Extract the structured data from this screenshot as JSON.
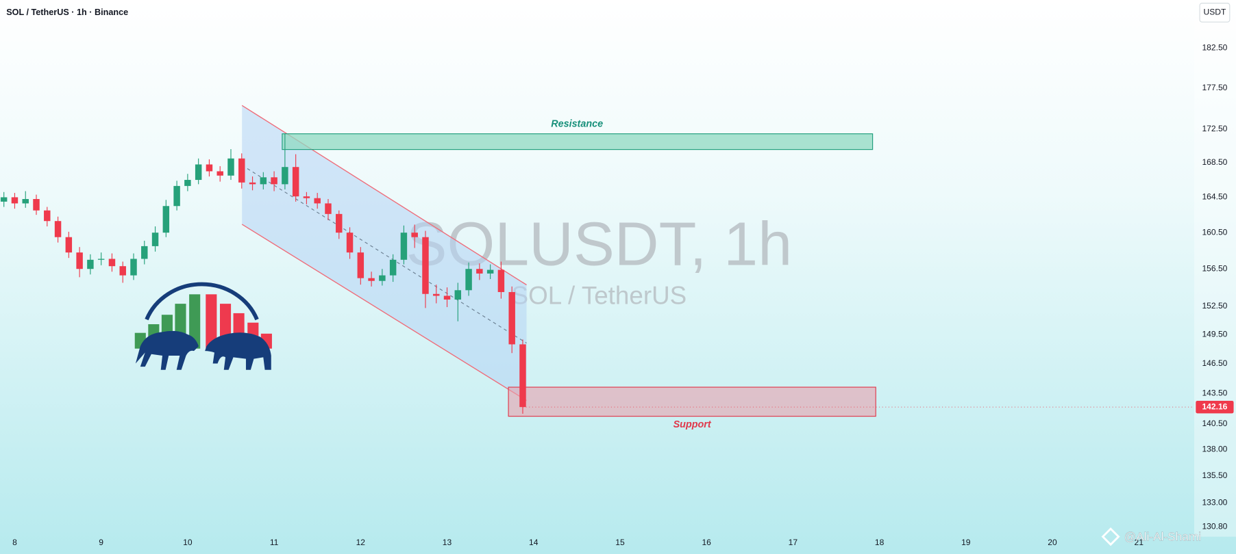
{
  "chart_data": {
    "type": "candlestick",
    "title": "SOL / TetherUS · 1h · Binance",
    "currency": "USDT",
    "watermark_title": "SOLUSDT, 1h",
    "watermark_subtitle": "SOL / TetherUS",
    "annotations": [
      "Resistance",
      "Support"
    ],
    "credit": "@Ali-Al-Shami",
    "log_scale": true,
    "grid": false,
    "up_color": "#26a17a",
    "down_color": "#ef3a4c",
    "x": [
      7.875,
      8,
      8.125,
      8.25,
      8.375,
      8.5,
      8.625,
      8.75,
      8.875,
      9,
      9.125,
      9.25,
      9.375,
      9.5,
      9.625,
      9.75,
      9.875,
      10,
      10.125,
      10.25,
      10.375,
      10.5,
      10.625,
      10.75,
      10.875,
      11,
      11.125,
      11.25,
      11.375,
      11.5,
      11.625,
      11.75,
      11.875,
      12,
      12.125,
      12.25,
      12.375,
      12.5,
      12.625,
      12.75,
      12.875,
      13,
      13.125,
      13.25,
      13.375,
      13.5,
      13.625,
      13.75,
      13.875
    ],
    "open": [
      164.0,
      164.5,
      163.8,
      164.3,
      163.0,
      161.8,
      160.0,
      158.3,
      156.5,
      157.5,
      157.6,
      156.8,
      155.8,
      157.6,
      159.0,
      160.5,
      163.5,
      165.8,
      166.5,
      168.3,
      167.5,
      167.0,
      169.0,
      166.2,
      166.0,
      166.8,
      166.0,
      168.0,
      164.6,
      164.4,
      163.8,
      162.6,
      160.5,
      158.3,
      155.5,
      155.2,
      155.8,
      157.5,
      160.5,
      160.0,
      153.8,
      153.6,
      153.2,
      154.2,
      156.5,
      156.0,
      156.4,
      154.0,
      148.5
    ],
    "high": [
      165.1,
      165.0,
      165.2,
      164.8,
      163.4,
      162.3,
      160.6,
      158.9,
      158.1,
      158.3,
      158.2,
      157.3,
      158.2,
      159.6,
      161.2,
      164.2,
      166.4,
      167.2,
      169.0,
      168.9,
      168.1,
      170.1,
      169.6,
      166.9,
      167.4,
      167.5,
      171.9,
      169.5,
      165.1,
      165.0,
      164.3,
      163.0,
      161.1,
      158.9,
      156.2,
      156.5,
      158.1,
      161.3,
      161.4,
      160.7,
      154.8,
      154.5,
      155.0,
      157.2,
      157.1,
      157.0,
      157.3,
      154.6,
      149.0
    ],
    "low": [
      163.4,
      163.2,
      163.3,
      162.5,
      161.2,
      159.4,
      157.7,
      155.6,
      155.9,
      156.9,
      156.2,
      155.0,
      155.3,
      157.0,
      158.4,
      160.0,
      163.0,
      165.2,
      166.0,
      166.9,
      166.3,
      166.5,
      165.5,
      165.3,
      165.4,
      165.2,
      165.4,
      164.0,
      163.7,
      163.2,
      161.9,
      159.8,
      157.6,
      154.8,
      154.6,
      154.7,
      155.1,
      157.0,
      158.8,
      152.3,
      152.8,
      152.4,
      150.9,
      153.6,
      155.3,
      155.4,
      153.3,
      147.6,
      141.5
    ],
    "close": [
      164.5,
      163.8,
      164.3,
      163.0,
      161.8,
      160.0,
      158.3,
      156.5,
      157.5,
      157.6,
      156.8,
      155.8,
      157.6,
      159.0,
      160.5,
      163.5,
      165.8,
      166.5,
      168.3,
      167.5,
      167.0,
      169.0,
      166.2,
      166.0,
      166.8,
      166.0,
      168.0,
      164.6,
      164.4,
      163.8,
      162.6,
      160.5,
      158.3,
      155.5,
      155.2,
      155.8,
      157.5,
      160.5,
      160.0,
      153.8,
      153.6,
      153.2,
      154.2,
      156.5,
      156.0,
      156.4,
      154.0,
      148.5,
      142.16
    ],
    "xlim": [
      7.83,
      21.64
    ],
    "xticks": [
      8,
      9,
      10,
      11,
      12,
      13,
      14,
      15,
      16,
      17,
      18,
      19,
      20,
      21
    ],
    "ylim": [
      129.9,
      188.7
    ],
    "yticks": [
      {
        "value": 182.5,
        "label": "182.50"
      },
      {
        "value": 177.5,
        "label": "177.50"
      },
      {
        "value": 172.5,
        "label": "172.50"
      },
      {
        "value": 168.5,
        "label": "168.50"
      },
      {
        "value": 164.5,
        "label": "164.50"
      },
      {
        "value": 160.5,
        "label": "160.50"
      },
      {
        "value": 156.5,
        "label": "156.50"
      },
      {
        "value": 152.5,
        "label": "152.50"
      },
      {
        "value": 149.5,
        "label": "149.50"
      },
      {
        "value": 146.5,
        "label": "146.50"
      },
      {
        "value": 143.5,
        "label": "143.50"
      },
      {
        "value": 140.5,
        "label": "140.50"
      },
      {
        "value": 138,
        "label": "138.00"
      },
      {
        "value": 135.5,
        "label": "135.50"
      },
      {
        "value": 133,
        "label": "133.00"
      },
      {
        "value": 130.8,
        "label": "130.80"
      }
    ]
  }
}
